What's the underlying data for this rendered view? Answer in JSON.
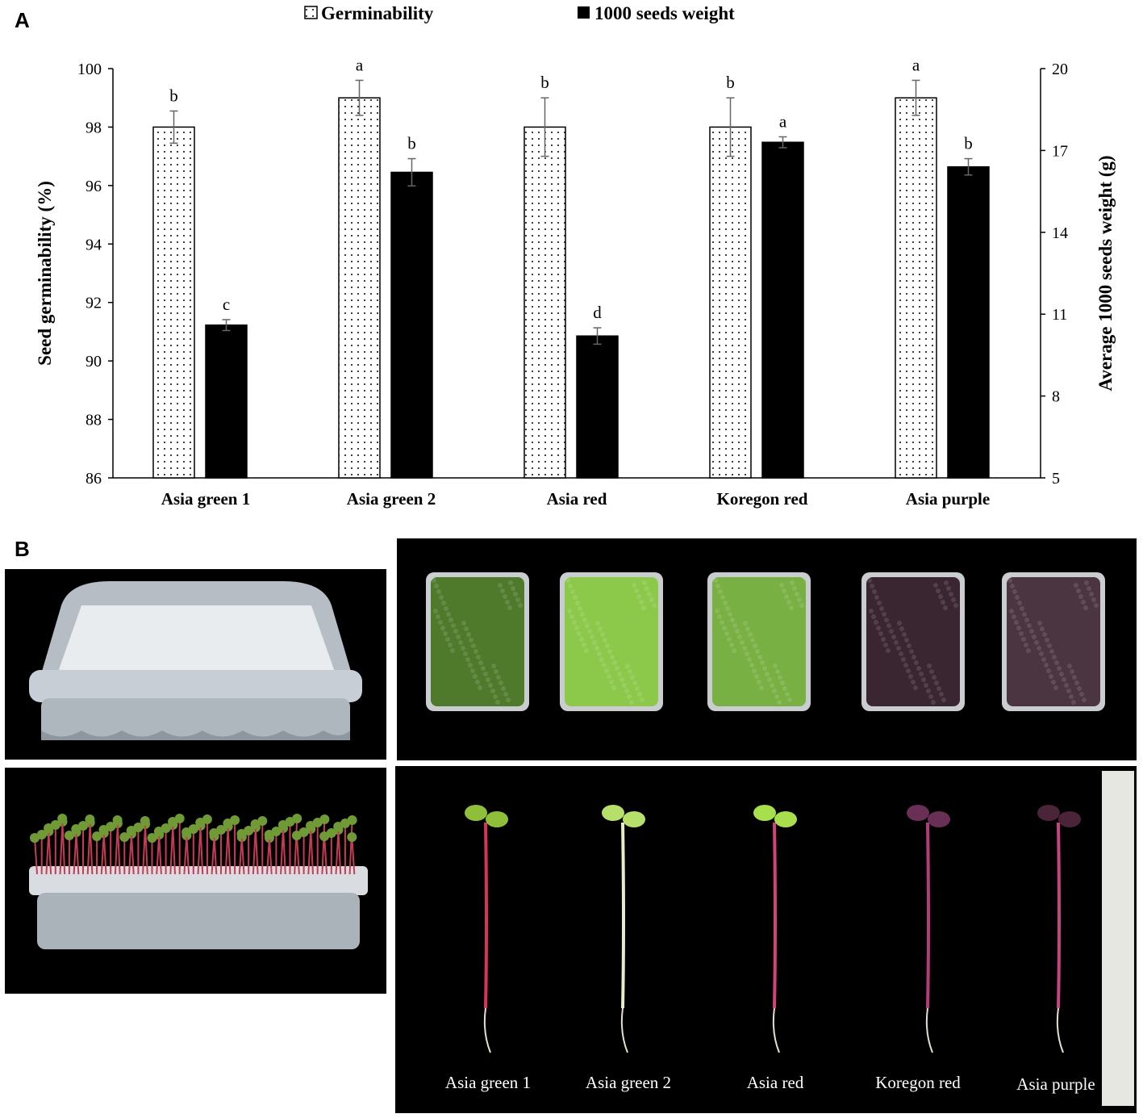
{
  "panels": {
    "a": "A",
    "b": "B"
  },
  "chart_data": {
    "type": "bar",
    "categories": [
      "Asia green 1",
      "Asia green 2",
      "Asia red",
      "Koregon red",
      "Asia purple"
    ],
    "legend": {
      "placement": "top-center",
      "entries": [
        "Germinability",
        "1000 seeds weight"
      ]
    },
    "ylabel": "Seed germinability (%)",
    "y2label": "Average 1000 seeds weight (g)",
    "ylim": [
      86,
      100
    ],
    "yticks": [
      "86",
      "88",
      "90",
      "92",
      "94",
      "96",
      "98",
      "100"
    ],
    "y2lim": [
      5,
      20
    ],
    "y2ticks": [
      "5",
      "8",
      "11",
      "14",
      "17",
      "20"
    ],
    "grid": false,
    "series": [
      {
        "name": "Germinability",
        "axis": "left",
        "pattern": "dotted",
        "values": [
          98.0,
          99.0,
          98.0,
          98.0,
          99.0
        ],
        "errors": [
          0.55,
          0.6,
          1.0,
          1.0,
          0.6
        ],
        "letters": [
          "b",
          "a",
          "b",
          "b",
          "a"
        ]
      },
      {
        "name": "1000 seeds weight",
        "axis": "right",
        "pattern": "solid",
        "color": "#000000",
        "values": [
          10.6,
          16.2,
          10.2,
          17.3,
          16.4
        ],
        "errors": [
          0.2,
          0.5,
          0.3,
          0.2,
          0.3
        ],
        "letters": [
          "c",
          "b",
          "d",
          "a",
          "b"
        ]
      }
    ]
  },
  "photos": {
    "captions": [
      "Asia green 1",
      "Asia green 2",
      "Asia red",
      "Koregon red",
      "Asia purple"
    ],
    "tray_colors": [
      "#4f7a2c",
      "#8cc94a",
      "#79b043",
      "#3a2630",
      "#4a3540"
    ],
    "stem_colors": [
      "#d4365a",
      "#e9ecc8",
      "#d0447a",
      "#b23d78",
      "#c2477f"
    ],
    "leaf_colors": [
      "#8fbf3a",
      "#b7e06a",
      "#a8df4c",
      "#6a2f55",
      "#4a2438"
    ]
  }
}
